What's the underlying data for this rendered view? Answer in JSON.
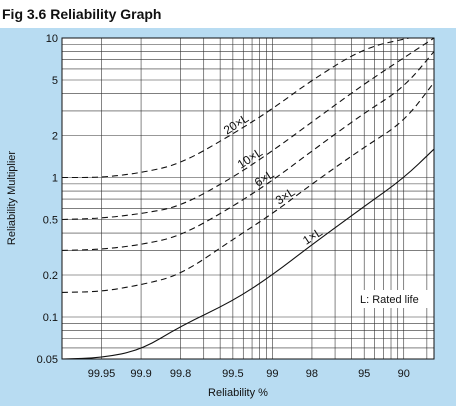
{
  "figure": {
    "title": "Fig 3.6 Reliability Graph"
  },
  "chart_data": {
    "type": "line",
    "title": "Fig 3.6 Reliability Graph",
    "xlabel": "Reliability %",
    "ylabel": "Reliability Multiplier",
    "y_scale": "log",
    "ylim": [
      0.05,
      10
    ],
    "x_scale": "log of failure probability (100 - R)",
    "xlim": [
      99.975,
      83
    ],
    "x_ticks": [
      "99.95",
      "99.9",
      "99.8",
      "99.5",
      "99",
      "98",
      "95",
      "90"
    ],
    "y_ticks": [
      "0.05",
      "0.1",
      "0.2",
      "0.5",
      "1",
      "2",
      "5",
      "10"
    ],
    "grid": true,
    "annotation": "L: Rated life",
    "series": [
      {
        "name": "1×L",
        "style": "solid",
        "x": [
          99.975,
          99.95,
          99.9,
          99.8,
          99.5,
          99,
          98,
          95,
          90,
          83
        ],
        "y": [
          0.05,
          0.051,
          0.058,
          0.086,
          0.13,
          0.2,
          0.33,
          0.62,
          0.99,
          1.6
        ]
      },
      {
        "name": "3×L",
        "style": "dashed",
        "x": [
          99.975,
          99.95,
          99.9,
          99.8,
          99.5,
          99,
          98,
          95,
          90,
          83
        ],
        "y": [
          0.15,
          0.152,
          0.17,
          0.2,
          0.36,
          0.55,
          0.9,
          1.65,
          2.5,
          4.8
        ]
      },
      {
        "name": "6×L",
        "style": "dashed",
        "x": [
          99.975,
          99.95,
          99.9,
          99.8,
          99.5,
          99,
          98,
          95,
          90,
          83
        ],
        "y": [
          0.3,
          0.305,
          0.33,
          0.38,
          0.62,
          0.95,
          1.55,
          2.9,
          4.4,
          8.0
        ]
      },
      {
        "name": "10×L",
        "style": "dashed",
        "x": [
          99.975,
          99.95,
          99.9,
          99.8,
          99.5,
          99,
          98,
          95,
          83
        ],
        "y": [
          0.5,
          0.51,
          0.55,
          0.62,
          1.0,
          1.55,
          2.5,
          4.7,
          10.0
        ]
      },
      {
        "name": "20×L",
        "style": "dashed",
        "x": [
          99.975,
          99.95,
          99.9,
          99.8,
          99.5,
          99,
          98,
          95,
          89
        ],
        "y": [
          1.0,
          1.0,
          1.08,
          1.25,
          2.05,
          3.1,
          5.0,
          8.5,
          10.0
        ]
      }
    ]
  }
}
